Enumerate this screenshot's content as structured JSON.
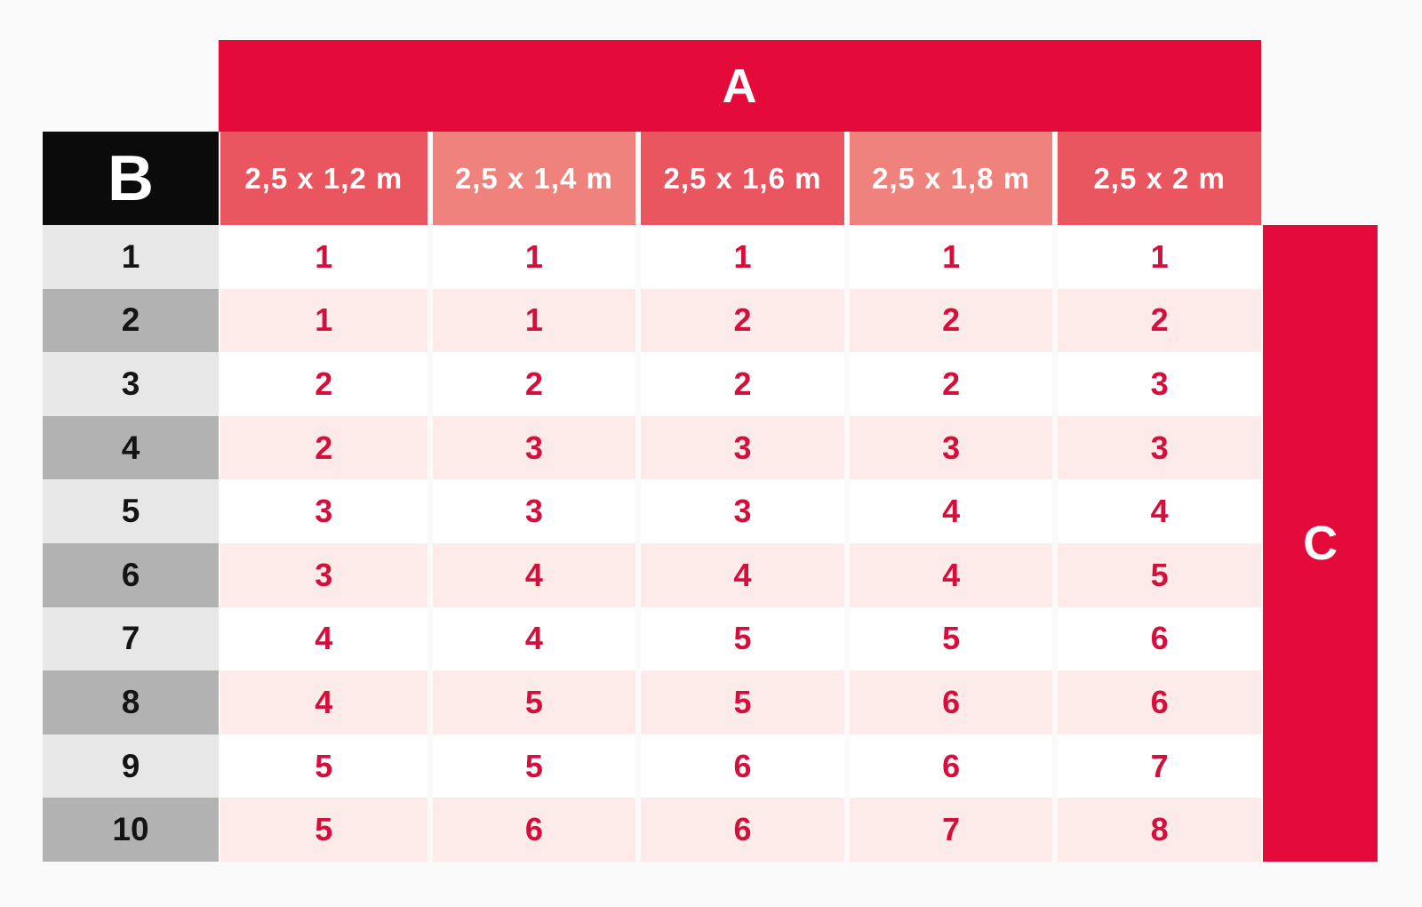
{
  "chart_data": {
    "type": "table",
    "title": "",
    "top_axis_label": "A",
    "row_axis_label": "B",
    "side_axis_label": "C",
    "columns": [
      "2,5 x 1,2 m",
      "2,5 x 1,4 m",
      "2,5 x 1,6 m",
      "2,5 x 1,8 m",
      "2,5 x 2 m"
    ],
    "row_labels": [
      "1",
      "2",
      "3",
      "4",
      "5",
      "6",
      "7",
      "8",
      "9",
      "10"
    ],
    "values": [
      [
        1,
        1,
        1,
        1,
        1
      ],
      [
        1,
        1,
        2,
        2,
        2
      ],
      [
        2,
        2,
        2,
        2,
        3
      ],
      [
        2,
        3,
        3,
        3,
        3
      ],
      [
        3,
        3,
        3,
        4,
        4
      ],
      [
        3,
        4,
        4,
        4,
        5
      ],
      [
        4,
        4,
        5,
        5,
        6
      ],
      [
        4,
        5,
        5,
        6,
        6
      ],
      [
        5,
        5,
        6,
        6,
        7
      ],
      [
        5,
        6,
        6,
        7,
        8
      ]
    ],
    "layout": {
      "grid": "off",
      "row_striping": "white-pink alternating",
      "label_striping": "light-dark gray alternating"
    }
  },
  "colors": {
    "crimson": "#e40b3a",
    "salmon_dark": "#e9565f",
    "salmon_light": "#ef827d",
    "gray_light": "#e8e7e7",
    "gray_dark": "#b3b2b2",
    "pink": "#fcebe9",
    "num": "#d50f3c",
    "black": "#0b0b0b",
    "page_bg": "#fbfafa"
  }
}
